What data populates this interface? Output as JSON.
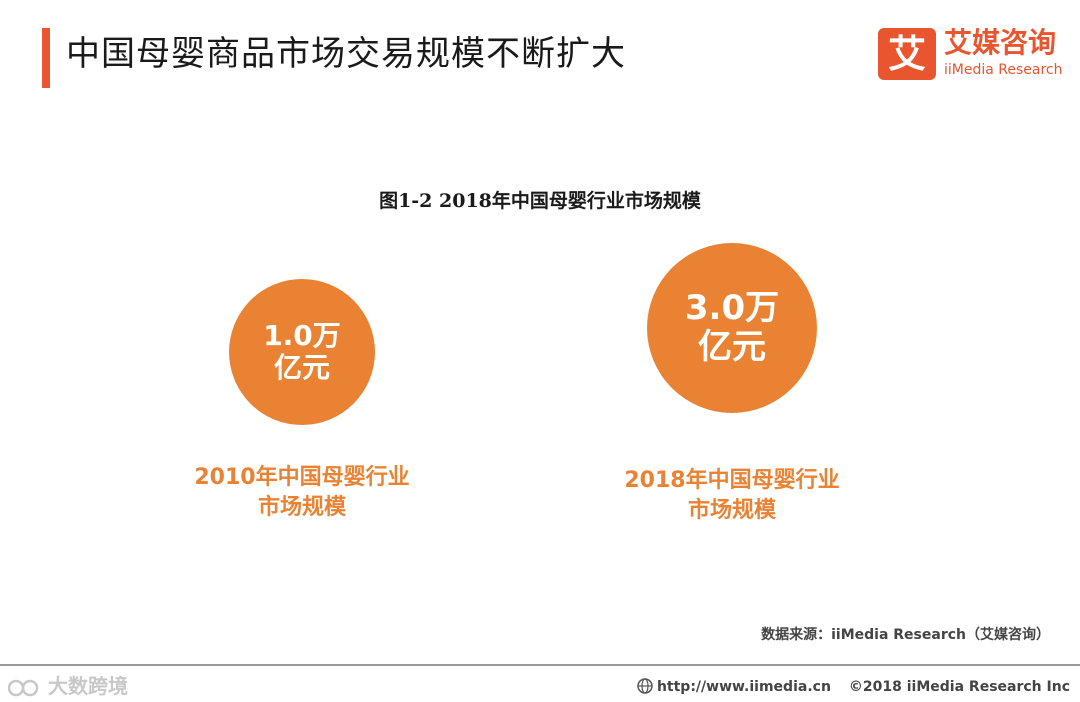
{
  "header": {
    "title": "中国母婴商品市场交易规模不断扩大",
    "brand_mark": "艾",
    "brand_name_cn": "艾媒咨询",
    "brand_name_en": "iiMedia Research"
  },
  "chart_data": {
    "type": "bubble",
    "title": "图1-2 2018年中国母婴行业市场规模",
    "series": [
      {
        "value": 1.0,
        "value_text": "1.0万",
        "unit_text": "亿元",
        "caption_line1": "2010年中国母婴行业",
        "caption_line2": "市场规模"
      },
      {
        "value": 3.0,
        "value_text": "3.0万",
        "unit_text": "亿元",
        "caption_line1": "2018年中国母婴行业",
        "caption_line2": "市场规模"
      }
    ]
  },
  "footer": {
    "source": "数据来源：iiMedia Research（艾媒咨询）",
    "url": "http://www.iimedia.cn",
    "copyright": "©2018 iiMedia Research Inc",
    "watermark": "大数跨境"
  },
  "colors": {
    "accent": "#e8552f",
    "bubble": "#e98333"
  }
}
